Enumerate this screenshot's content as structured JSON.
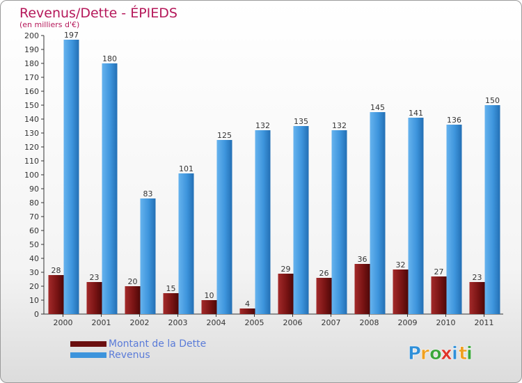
{
  "title": "Revenus/Dette - ÉPIEDS",
  "subtitle": "(en milliers d'€)",
  "chart_data": {
    "type": "bar",
    "title": "Revenus/Dette - ÉPIEDS",
    "subtitle": "(en milliers d'€)",
    "xlabel": "",
    "ylabel": "",
    "ylim": [
      0,
      200
    ],
    "ytick_step": 10,
    "grid": false,
    "legend_position": "bottom-left",
    "categories": [
      "2000",
      "2001",
      "2002",
      "2003",
      "2004",
      "2005",
      "2006",
      "2007",
      "2008",
      "2009",
      "2010",
      "2011"
    ],
    "series": [
      {
        "name": "Montant de la Dette",
        "color": "#7a1414",
        "values": [
          28,
          23,
          20,
          15,
          10,
          4,
          29,
          26,
          36,
          32,
          27,
          23
        ]
      },
      {
        "name": "Revenus",
        "color": "#3d94dc",
        "values": [
          197,
          180,
          83,
          101,
          125,
          132,
          135,
          132,
          145,
          141,
          136,
          150
        ]
      }
    ]
  },
  "legend": {
    "items": [
      {
        "label": "Montant de la Dette",
        "color": "#6b0f0f"
      },
      {
        "label": "Revenus",
        "color": "#3d94dc"
      }
    ]
  },
  "brand": {
    "letters": [
      "P",
      "r",
      "o",
      "x",
      "i",
      "t",
      "i"
    ],
    "colors": [
      "#2f8fd8",
      "#f0a020",
      "#3aa63a",
      "#e0352a",
      "#2f8fd8",
      "#f0a020",
      "#3aa63a"
    ]
  }
}
